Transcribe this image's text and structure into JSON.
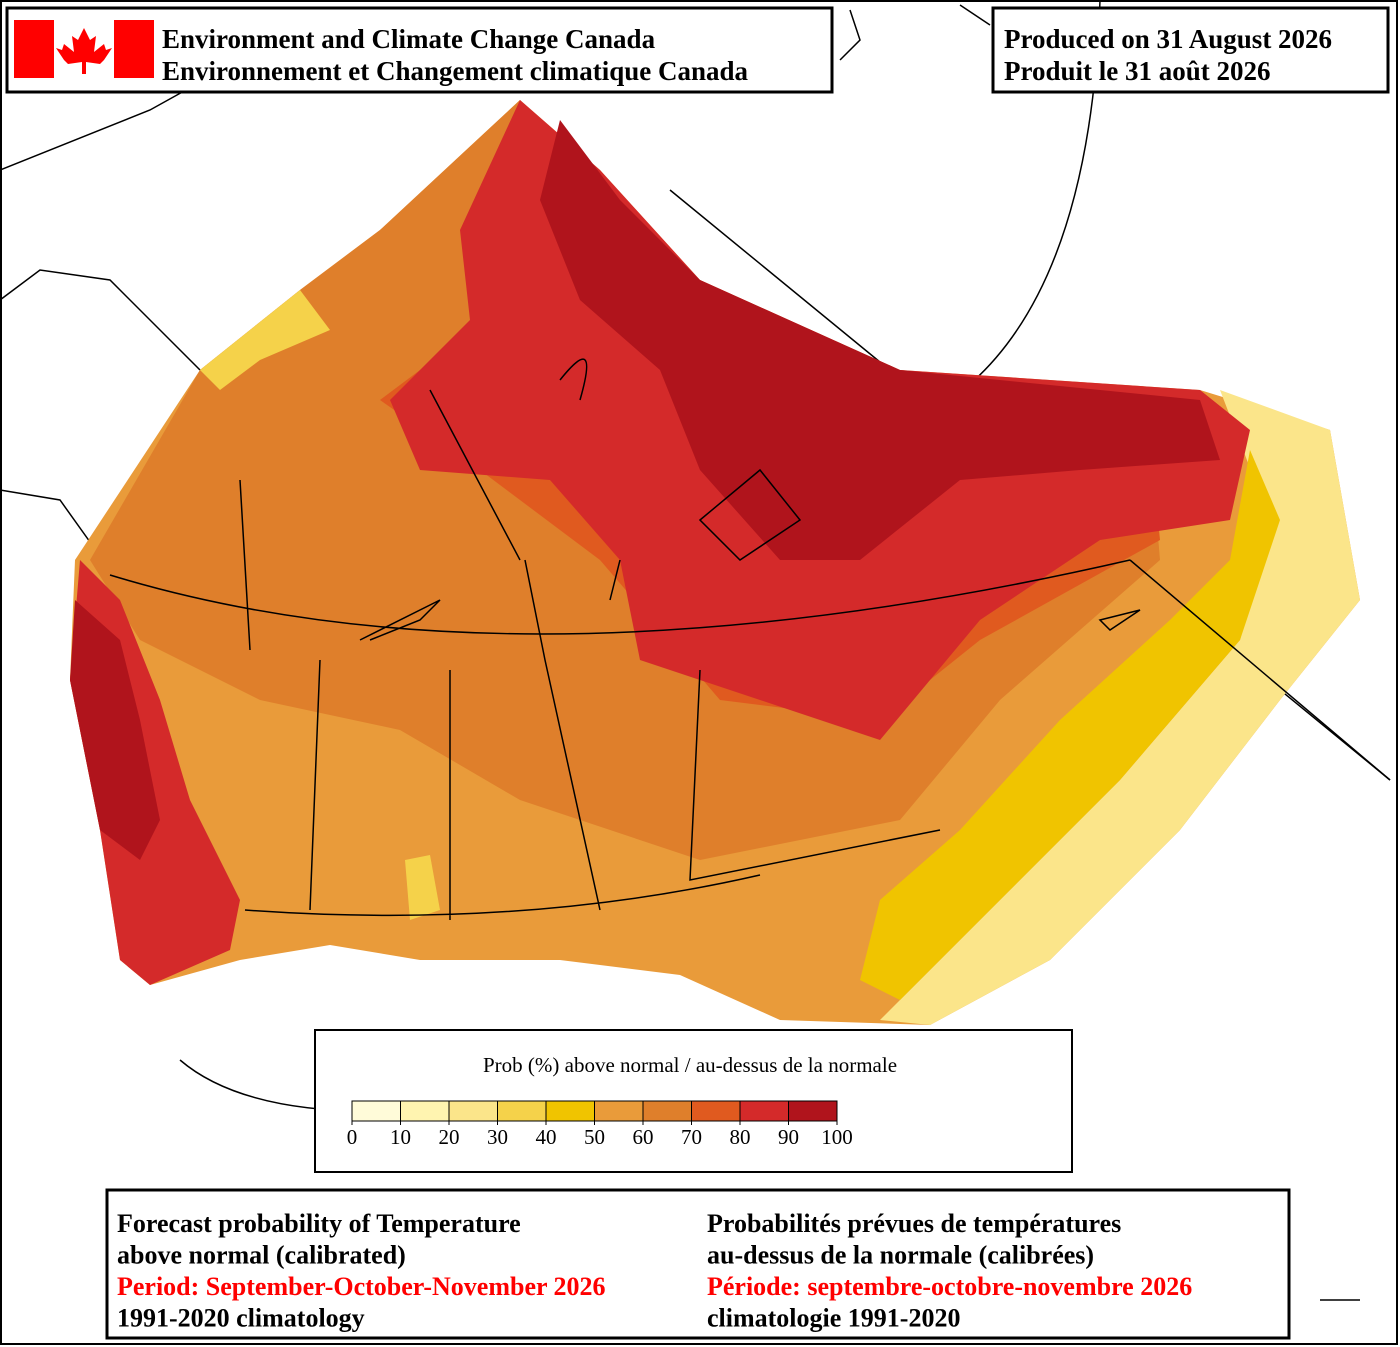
{
  "header": {
    "agency_en": "Environment and Climate Change Canada",
    "agency_fr": "Environnement et Changement climatique Canada",
    "produced_en": "Produced on 31 August 2026",
    "produced_fr": "Produit le 31 août 2026"
  },
  "legend": {
    "title": "Prob (%) above normal / au-dessus de la normale",
    "ticks": [
      0,
      10,
      20,
      30,
      40,
      50,
      60,
      70,
      80,
      90,
      100
    ],
    "colors": [
      "#fffbd9",
      "#fff4b0",
      "#fbe58a",
      "#f5d24a",
      "#f0c400",
      "#e99b3a",
      "#df7f2b",
      "#e05a1f",
      "#d42a2a",
      "#b0141c"
    ]
  },
  "caption": {
    "en": [
      "Forecast probability of Temperature",
      "above normal (calibrated)",
      "Period: September-October-November 2026",
      "1991-2020 climatology"
    ],
    "fr": [
      "Probabilités prévues de températures",
      "au-dessus de la normale (calibrées)",
      "Période: septembre-octobre-novembre 2026",
      "climatologie 1991-2020"
    ]
  }
}
